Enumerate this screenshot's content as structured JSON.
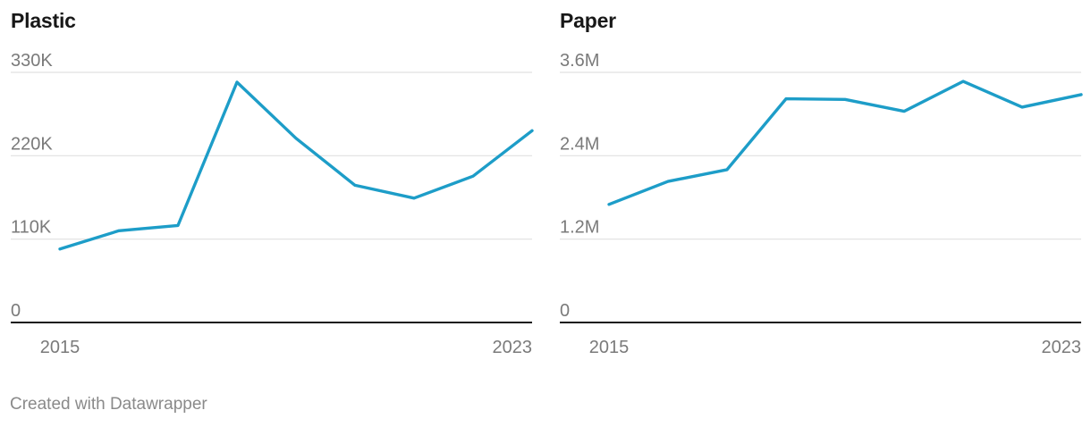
{
  "footer": "Created with Datawrapper",
  "colors": {
    "line": "#1d9dc8",
    "grid": "#e0e0e0",
    "axis": "#181818",
    "tick_text": "#7a7a7a"
  },
  "chart_data": [
    {
      "type": "line",
      "title": "Plastic",
      "x": [
        2015,
        2016,
        2017,
        2018,
        2019,
        2020,
        2021,
        2022,
        2023
      ],
      "x_tick_labels": [
        "2015",
        "2023"
      ],
      "y_ticks": [
        0,
        110000,
        220000,
        330000
      ],
      "y_tick_labels": [
        "0",
        "110K",
        "220K",
        "330K"
      ],
      "ylim": [
        0,
        330000
      ],
      "grid": true,
      "series": [
        {
          "values": [
            97000,
            121000,
            128000,
            317000,
            243000,
            181000,
            164000,
            193000,
            253000
          ]
        }
      ]
    },
    {
      "type": "line",
      "title": "Paper",
      "x": [
        2015,
        2016,
        2017,
        2018,
        2019,
        2020,
        2021,
        2022,
        2023
      ],
      "x_tick_labels": [
        "2015",
        "2023"
      ],
      "y_ticks": [
        0,
        1200000,
        2400000,
        3600000
      ],
      "y_tick_labels": [
        "0",
        "1.2M",
        "2.4M",
        "3.6M"
      ],
      "ylim": [
        0,
        3600000
      ],
      "grid": true,
      "series": [
        {
          "values": [
            1700000,
            2030000,
            2200000,
            3220000,
            3210000,
            3040000,
            3470000,
            3100000,
            3280000
          ]
        }
      ]
    }
  ]
}
